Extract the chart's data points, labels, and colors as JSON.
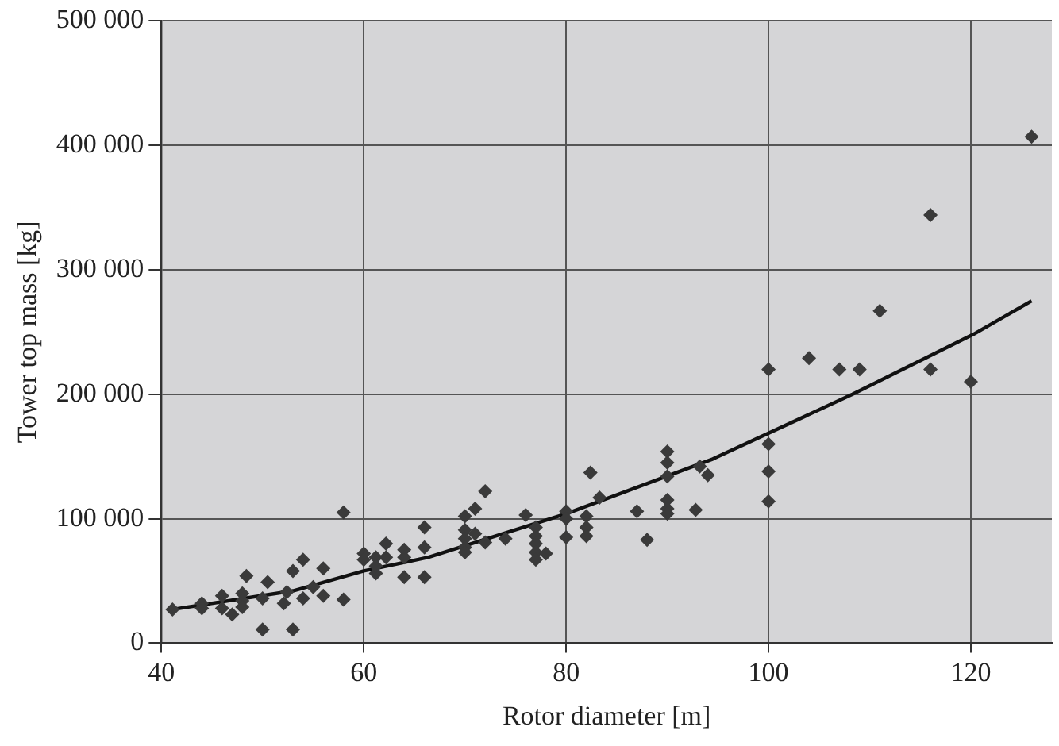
{
  "chart_data": {
    "type": "scatter",
    "xlabel": "Rotor diameter [m]",
    "ylabel": "Tower top mass [kg]",
    "xlim": [
      40,
      128
    ],
    "xticks": [
      40,
      60,
      80,
      100,
      120
    ],
    "ylim": [
      0,
      500000
    ],
    "yticks": [
      0,
      {
        "value": 100000,
        "label": "100 000"
      },
      {
        "value": 200000,
        "label": "200 000"
      },
      {
        "value": 300000,
        "label": "300 000"
      },
      {
        "value": 400000,
        "label": "400 000"
      },
      {
        "value": 500000,
        "label": "500 000"
      }
    ],
    "grid": true,
    "legend": false,
    "marker": "diamond",
    "series": [
      {
        "color": "#3a3a3a",
        "x": [
          41.1,
          44,
          44,
          46,
          46,
          47,
          48,
          48,
          48,
          48.4,
          50,
          50,
          50.5,
          52.1,
          52.4,
          53,
          53,
          54,
          54,
          55,
          56,
          56,
          58,
          58,
          60,
          60,
          61.2,
          61.2,
          61.2,
          62.2,
          62.2,
          64,
          64,
          64,
          66,
          66,
          66,
          70,
          70,
          70,
          70,
          70,
          71,
          71,
          72,
          72,
          74,
          76,
          77,
          77,
          77,
          77,
          77,
          78,
          80,
          80,
          80,
          82,
          82,
          82,
          82.4,
          83.3,
          87,
          88,
          90,
          90,
          90,
          90,
          90,
          90,
          92.8,
          93.2,
          94,
          100,
          100,
          100,
          100,
          104,
          107,
          109,
          111,
          116,
          116,
          120,
          126
        ],
        "values": [
          27000,
          32000,
          28000,
          38000,
          28000,
          23000,
          40000,
          34000,
          29000,
          54000,
          36000,
          11000,
          49000,
          32000,
          41000,
          58000,
          11000,
          67000,
          36000,
          45000,
          60000,
          38000,
          105000,
          35000,
          72000,
          67000,
          69000,
          56000,
          62000,
          80000,
          69000,
          75000,
          69000,
          53000,
          93000,
          77000,
          53000,
          102000,
          91000,
          84000,
          77000,
          73000,
          108000,
          88000,
          122000,
          81000,
          84000,
          103000,
          93000,
          86000,
          80000,
          73000,
          67000,
          72000,
          106000,
          100000,
          85000,
          102000,
          93000,
          86000,
          137000,
          117000,
          106000,
          83000,
          154000,
          145000,
          134000,
          115000,
          108000,
          104000,
          107000,
          142000,
          135000,
          220000,
          160000,
          138000,
          114000,
          229000,
          220000,
          220000,
          267000,
          344000,
          220000,
          210000,
          407000
        ]
      },
      {
        "type": "line",
        "color": "#111111",
        "marker": "none",
        "line_style": "solid",
        "x": [
          41,
          53,
          60,
          66.4,
          80,
          94.5,
          108.3,
          120.2,
          126
        ],
        "values": [
          27000,
          42000,
          58000,
          69000,
          104000,
          148000,
          200000,
          248000,
          275000
        ]
      }
    ]
  }
}
